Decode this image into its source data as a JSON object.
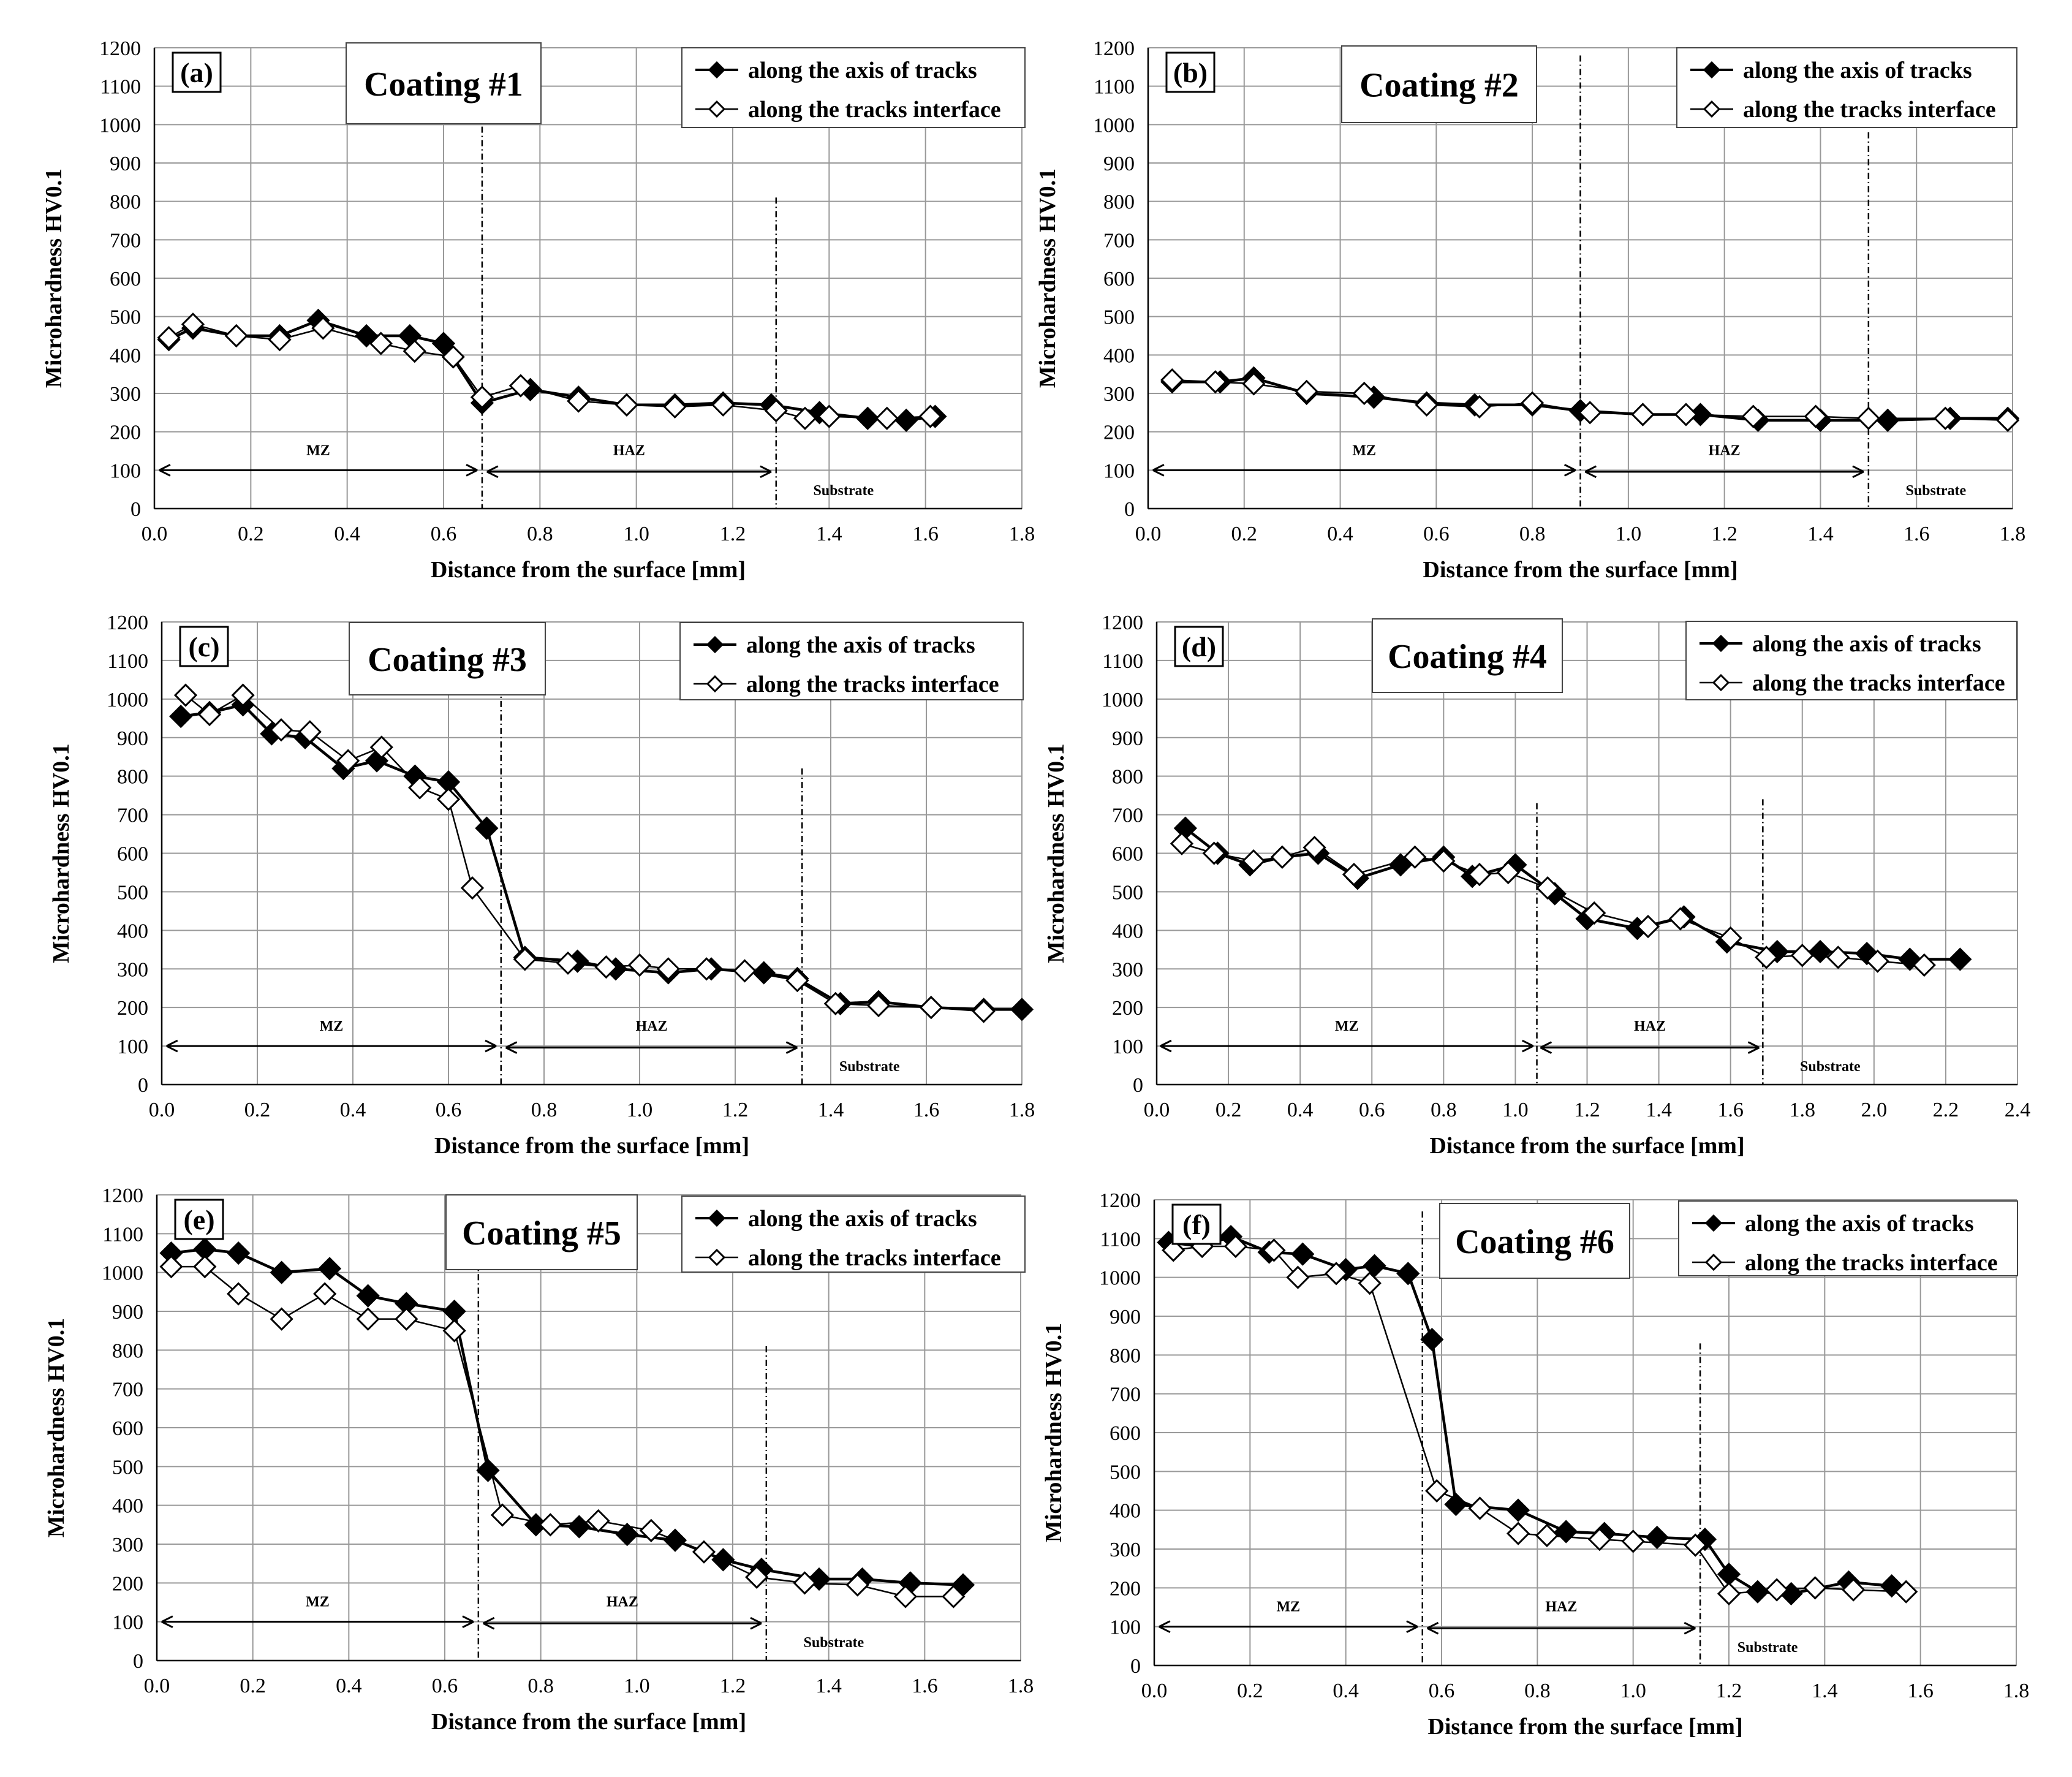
{
  "figure": {
    "background": "#ffffff",
    "line_color": "#000000",
    "grid_color": "#999999"
  },
  "chart_data": [
    {
      "type": "line",
      "panel_label": "(a)",
      "title": "Coating #1",
      "xlabel": "Distance from the surface [mm]",
      "ylabel": "Microhardness HV0.1",
      "xlim": [
        0,
        1.8
      ],
      "ylim": [
        0,
        1200
      ],
      "xticks": [
        0.0,
        0.2,
        0.4,
        0.6,
        0.8,
        1.0,
        1.2,
        1.4,
        1.6,
        1.8
      ],
      "yticks": [
        0,
        100,
        200,
        300,
        400,
        500,
        600,
        700,
        800,
        900,
        1000,
        1100,
        1200
      ],
      "grid": true,
      "legend_position": "top-right",
      "series": [
        {
          "name": "along the axis of tracks",
          "marker": "filled-diamond",
          "x": [
            0.03,
            0.08,
            0.17,
            0.26,
            0.34,
            0.44,
            0.53,
            0.6,
            0.68,
            0.78,
            0.88,
            0.98,
            1.08,
            1.18,
            1.28,
            1.38,
            1.48,
            1.56,
            1.62
          ],
          "y": [
            440,
            470,
            450,
            450,
            490,
            450,
            450,
            430,
            275,
            310,
            290,
            270,
            270,
            275,
            270,
            250,
            235,
            230,
            240
          ]
        },
        {
          "name": "along the tracks interface",
          "marker": "open-diamond",
          "x": [
            0.03,
            0.08,
            0.17,
            0.26,
            0.35,
            0.47,
            0.54,
            0.62,
            0.68,
            0.76,
            0.88,
            0.98,
            1.08,
            1.18,
            1.29,
            1.35,
            1.4,
            1.52,
            1.61
          ],
          "y": [
            445,
            480,
            450,
            440,
            470,
            430,
            410,
            395,
            290,
            320,
            280,
            270,
            265,
            270,
            255,
            235,
            240,
            235,
            240
          ]
        }
      ],
      "annotations": {
        "boundaries": [
          {
            "x": 0.68,
            "top": 1100
          },
          {
            "x": 1.29,
            "top": 810
          }
        ],
        "zones": [
          {
            "label": "MZ",
            "from": 0.01,
            "to": 0.67,
            "arrow": true
          },
          {
            "label": "HAZ",
            "from": 0.69,
            "to": 1.28,
            "arrow": true
          },
          {
            "label": "Substrate",
            "from": 1.29,
            "to": 1.8,
            "arrow": false
          }
        ]
      }
    },
    {
      "type": "line",
      "panel_label": "(b)",
      "title": "Coating #2",
      "xlabel": "Distance from the surface [mm]",
      "ylabel": "Microhardness HV0.1",
      "xlim": [
        0,
        1.8
      ],
      "ylim": [
        0,
        1200
      ],
      "xticks": [
        0.0,
        0.2,
        0.4,
        0.6,
        0.8,
        1.0,
        1.2,
        1.4,
        1.6,
        1.8
      ],
      "yticks": [
        0,
        100,
        200,
        300,
        400,
        500,
        600,
        700,
        800,
        900,
        1000,
        1100,
        1200
      ],
      "grid": true,
      "legend_position": "top-right",
      "series": [
        {
          "name": "along the axis of tracks",
          "marker": "filled-diamond",
          "x": [
            0.05,
            0.15,
            0.22,
            0.33,
            0.47,
            0.58,
            0.68,
            0.8,
            0.9,
            1.03,
            1.15,
            1.27,
            1.4,
            1.54,
            1.67,
            1.79
          ],
          "y": [
            330,
            330,
            340,
            300,
            290,
            275,
            270,
            270,
            255,
            245,
            245,
            230,
            230,
            230,
            235,
            235
          ]
        },
        {
          "name": "along the tracks interface",
          "marker": "open-diamond",
          "x": [
            0.05,
            0.14,
            0.22,
            0.33,
            0.45,
            0.58,
            0.69,
            0.8,
            0.92,
            1.03,
            1.12,
            1.26,
            1.39,
            1.5,
            1.66,
            1.79
          ],
          "y": [
            335,
            330,
            325,
            305,
            300,
            270,
            265,
            275,
            250,
            245,
            245,
            240,
            240,
            235,
            235,
            230
          ]
        }
      ],
      "annotations": {
        "boundaries": [
          {
            "x": 0.9,
            "top": 1180
          },
          {
            "x": 1.5,
            "top": 980
          }
        ],
        "zones": [
          {
            "label": "MZ",
            "from": 0.01,
            "to": 0.89,
            "arrow": true
          },
          {
            "label": "HAZ",
            "from": 0.91,
            "to": 1.49,
            "arrow": true
          },
          {
            "label": "Substrate",
            "from": 1.5,
            "to": 1.8,
            "arrow": false
          }
        ]
      }
    },
    {
      "type": "line",
      "panel_label": "(c)",
      "title": "Coating #3",
      "xlabel": "Distance from the surface [mm]",
      "ylabel": "Microhardness HV0.1",
      "xlim": [
        0,
        1.8
      ],
      "ylim": [
        0,
        1200
      ],
      "xticks": [
        0.0,
        0.2,
        0.4,
        0.6,
        0.8,
        1.0,
        1.2,
        1.4,
        1.6,
        1.8
      ],
      "yticks": [
        0,
        100,
        200,
        300,
        400,
        500,
        600,
        700,
        800,
        900,
        1000,
        1100,
        1200
      ],
      "grid": true,
      "legend_position": "top-right",
      "series": [
        {
          "name": "along the axis of tracks",
          "marker": "filled-diamond",
          "x": [
            0.04,
            0.1,
            0.17,
            0.23,
            0.3,
            0.38,
            0.45,
            0.53,
            0.6,
            0.68,
            0.76,
            0.87,
            0.95,
            1.06,
            1.15,
            1.26,
            1.33,
            1.42,
            1.5,
            1.61,
            1.72,
            1.8
          ],
          "y": [
            955,
            965,
            985,
            910,
            900,
            820,
            840,
            800,
            785,
            665,
            330,
            320,
            300,
            290,
            300,
            290,
            275,
            210,
            215,
            200,
            195,
            195
          ]
        },
        {
          "name": "along the tracks interface",
          "marker": "open-diamond",
          "x": [
            0.05,
            0.1,
            0.17,
            0.25,
            0.31,
            0.39,
            0.46,
            0.54,
            0.6,
            0.65,
            0.76,
            0.85,
            0.93,
            1.0,
            1.06,
            1.14,
            1.22,
            1.33,
            1.41,
            1.5,
            1.61,
            1.72
          ],
          "y": [
            1010,
            960,
            1010,
            920,
            915,
            840,
            875,
            770,
            740,
            510,
            325,
            315,
            305,
            310,
            300,
            300,
            295,
            270,
            210,
            205,
            200,
            190
          ]
        }
      ],
      "annotations": {
        "boundaries": [
          {
            "x": 0.71,
            "top": 1100
          },
          {
            "x": 1.34,
            "top": 820
          }
        ],
        "zones": [
          {
            "label": "MZ",
            "from": 0.01,
            "to": 0.7,
            "arrow": true
          },
          {
            "label": "HAZ",
            "from": 0.72,
            "to": 1.33,
            "arrow": true
          },
          {
            "label": "Substrate",
            "from": 1.34,
            "to": 1.8,
            "arrow": false
          }
        ]
      }
    },
    {
      "type": "line",
      "panel_label": "(d)",
      "title": "Coating #4",
      "xlabel": "Distance from the surface [mm]",
      "ylabel": "Microhardness HV0.1",
      "xlim": [
        0,
        2.4
      ],
      "ylim": [
        0,
        1200
      ],
      "xticks": [
        0.0,
        0.2,
        0.4,
        0.6,
        0.8,
        1.0,
        1.2,
        1.4,
        1.6,
        1.8,
        2.0,
        2.2,
        2.4
      ],
      "yticks": [
        0,
        100,
        200,
        300,
        400,
        500,
        600,
        700,
        800,
        900,
        1000,
        1100,
        1200
      ],
      "grid": true,
      "legend_position": "top-right",
      "series": [
        {
          "name": "along the axis of tracks",
          "marker": "filled-diamond",
          "x": [
            0.08,
            0.17,
            0.26,
            0.35,
            0.45,
            0.56,
            0.68,
            0.8,
            0.88,
            1.0,
            1.11,
            1.2,
            1.34,
            1.47,
            1.59,
            1.73,
            1.85,
            1.98,
            2.1,
            2.24
          ],
          "y": [
            665,
            600,
            570,
            590,
            600,
            535,
            570,
            590,
            540,
            570,
            495,
            430,
            405,
            435,
            370,
            345,
            345,
            340,
            325,
            325
          ]
        },
        {
          "name": "along the tracks interface",
          "marker": "open-diamond",
          "x": [
            0.07,
            0.16,
            0.27,
            0.35,
            0.44,
            0.55,
            0.72,
            0.8,
            0.9,
            0.98,
            1.09,
            1.22,
            1.37,
            1.46,
            1.6,
            1.7,
            1.8,
            1.9,
            2.01,
            2.14
          ],
          "y": [
            625,
            600,
            580,
            590,
            615,
            545,
            590,
            580,
            545,
            550,
            510,
            445,
            410,
            430,
            380,
            330,
            335,
            330,
            320,
            310
          ]
        }
      ],
      "annotations": {
        "boundaries": [
          {
            "x": 1.06,
            "top": 730
          },
          {
            "x": 1.69,
            "top": 740
          }
        ],
        "zones": [
          {
            "label": "MZ",
            "from": 0.01,
            "to": 1.05,
            "arrow": true
          },
          {
            "label": "HAZ",
            "from": 1.07,
            "to": 1.68,
            "arrow": true
          },
          {
            "label": "Substrate",
            "from": 1.69,
            "to": 2.4,
            "arrow": false
          }
        ]
      }
    },
    {
      "type": "line",
      "panel_label": "(e)",
      "title": "Coating #5",
      "xlabel": "Distance from the surface [mm]",
      "ylabel": "Microhardness HV0.1",
      "xlim": [
        0,
        1.8
      ],
      "ylim": [
        0,
        1200
      ],
      "xticks": [
        0.0,
        0.2,
        0.4,
        0.6,
        0.8,
        1.0,
        1.2,
        1.4,
        1.6,
        1.8
      ],
      "yticks": [
        0,
        100,
        200,
        300,
        400,
        500,
        600,
        700,
        800,
        900,
        1000,
        1100,
        1200
      ],
      "grid": true,
      "legend_position": "top-right",
      "series": [
        {
          "name": "along the axis of tracks",
          "marker": "filled-diamond",
          "x": [
            0.03,
            0.1,
            0.17,
            0.26,
            0.36,
            0.44,
            0.52,
            0.62,
            0.69,
            0.79,
            0.88,
            0.98,
            1.08,
            1.18,
            1.26,
            1.38,
            1.47,
            1.57,
            1.68
          ],
          "y": [
            1050,
            1060,
            1050,
            1000,
            1010,
            940,
            920,
            900,
            490,
            350,
            345,
            325,
            310,
            260,
            235,
            210,
            210,
            200,
            195
          ]
        },
        {
          "name": "along the tracks interface",
          "marker": "open-diamond",
          "x": [
            0.03,
            0.1,
            0.17,
            0.26,
            0.35,
            0.44,
            0.52,
            0.62,
            0.72,
            0.82,
            0.92,
            1.03,
            1.14,
            1.25,
            1.35,
            1.46,
            1.56,
            1.66
          ],
          "y": [
            1015,
            1015,
            945,
            880,
            945,
            880,
            880,
            850,
            375,
            350,
            360,
            335,
            280,
            215,
            200,
            195,
            165,
            165
          ]
        }
      ],
      "annotations": {
        "boundaries": [
          {
            "x": 0.67,
            "top": 1100
          },
          {
            "x": 1.27,
            "top": 810
          }
        ],
        "zones": [
          {
            "label": "MZ",
            "from": 0.01,
            "to": 0.66,
            "arrow": true
          },
          {
            "label": "HAZ",
            "from": 0.68,
            "to": 1.26,
            "arrow": true
          },
          {
            "label": "Substrate",
            "from": 1.27,
            "to": 1.8,
            "arrow": false
          }
        ]
      }
    },
    {
      "type": "line",
      "panel_label": "(f)",
      "title": "Coating #6",
      "xlabel": "Distance from the surface [mm]",
      "ylabel": "Microhardness HV0.1",
      "xlim": [
        0,
        1.8
      ],
      "ylim": [
        0,
        1200
      ],
      "xticks": [
        0.0,
        0.2,
        0.4,
        0.6,
        0.8,
        1.0,
        1.2,
        1.4,
        1.6,
        1.8
      ],
      "yticks": [
        0,
        100,
        200,
        300,
        400,
        500,
        600,
        700,
        800,
        900,
        1000,
        1100,
        1200
      ],
      "grid": true,
      "legend_position": "top-right",
      "series": [
        {
          "name": "along the axis of tracks",
          "marker": "filled-diamond",
          "x": [
            0.03,
            0.1,
            0.16,
            0.24,
            0.31,
            0.4,
            0.46,
            0.53,
            0.58,
            0.63,
            0.76,
            0.86,
            0.94,
            1.05,
            1.15,
            1.2,
            1.26,
            1.33,
            1.45,
            1.54
          ],
          "y": [
            1090,
            1080,
            1105,
            1065,
            1060,
            1020,
            1030,
            1010,
            840,
            415,
            400,
            345,
            340,
            330,
            325,
            235,
            190,
            185,
            215,
            205
          ]
        },
        {
          "name": "along the tracks interface",
          "marker": "open-diamond",
          "x": [
            0.04,
            0.1,
            0.17,
            0.25,
            0.3,
            0.38,
            0.45,
            0.59,
            0.68,
            0.76,
            0.82,
            0.93,
            1.0,
            1.13,
            1.2,
            1.3,
            1.38,
            1.46,
            1.57
          ],
          "y": [
            1070,
            1080,
            1080,
            1070,
            1000,
            1010,
            985,
            450,
            405,
            340,
            335,
            325,
            320,
            310,
            185,
            195,
            200,
            195,
            190
          ]
        }
      ],
      "annotations": {
        "boundaries": [
          {
            "x": 0.56,
            "top": 1170
          },
          {
            "x": 1.14,
            "top": 830
          }
        ],
        "zones": [
          {
            "label": "MZ",
            "from": 0.01,
            "to": 0.55,
            "arrow": true
          },
          {
            "label": "HAZ",
            "from": 0.57,
            "to": 1.13,
            "arrow": true
          },
          {
            "label": "Substrate",
            "from": 1.14,
            "to": 1.8,
            "arrow": false
          }
        ]
      }
    }
  ]
}
